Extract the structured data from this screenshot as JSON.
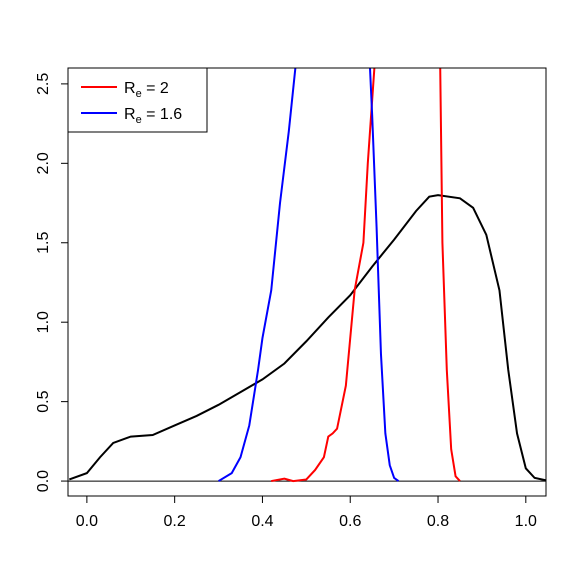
{
  "chart_data": {
    "type": "line",
    "xlim": [
      -0.043,
      1.046
    ],
    "ylim": [
      -0.094,
      2.6
    ],
    "xticks": [
      {
        "value": 0,
        "label": "0.0"
      },
      0.2,
      0.4,
      0.6,
      0.8,
      {
        "value": 1,
        "label": "1.0"
      }
    ],
    "yticks": [
      {
        "value": 0,
        "label": "0.0"
      },
      0.5,
      {
        "value": 1,
        "label": "1.0"
      },
      1.5,
      {
        "value": 2,
        "label": "2.0"
      },
      2.5
    ],
    "hline": 0,
    "legend": "top-left",
    "series": [
      {
        "color": "#000000",
        "x": [
          -0.04,
          0,
          0.03,
          0.06,
          0.1,
          0.15,
          0.2,
          0.25,
          0.3,
          0.35,
          0.4,
          0.45,
          0.5,
          0.55,
          0.6,
          0.65,
          0.7,
          0.75,
          0.78,
          0.8,
          0.85,
          0.88,
          0.91,
          0.94,
          0.96,
          0.98,
          1.0,
          1.02,
          1.045
        ],
        "values": [
          0.01,
          0.05,
          0.15,
          0.24,
          0.28,
          0.29,
          0.35,
          0.41,
          0.48,
          0.56,
          0.64,
          0.74,
          0.88,
          1.03,
          1.17,
          1.35,
          1.52,
          1.7,
          1.79,
          1.8,
          1.78,
          1.72,
          1.55,
          1.2,
          0.7,
          0.3,
          0.08,
          0.02,
          0.005
        ]
      },
      {
        "name": [
          "R",
          "e",
          " = 2"
        ],
        "color": "#ff0000",
        "x": [
          0.42,
          0.45,
          0.47,
          0.5,
          0.52,
          0.54,
          0.55,
          0.56,
          0.57,
          0.59,
          0.61,
          0.63,
          0.64,
          0.655,
          null,
          0.805,
          0.81,
          0.82,
          0.83,
          0.84,
          0.85
        ],
        "values": [
          0,
          0.015,
          0,
          0.01,
          0.07,
          0.15,
          0.28,
          0.3,
          0.33,
          0.6,
          1.2,
          1.5,
          2.0,
          2.6,
          null,
          2.6,
          1.5,
          0.7,
          0.2,
          0.03,
          0
        ]
      },
      {
        "name": [
          "R",
          "e",
          " = 1.6"
        ],
        "color": "#0000ff",
        "x": [
          0.3,
          0.33,
          0.35,
          0.37,
          0.39,
          0.4,
          0.42,
          0.44,
          0.46,
          0.475,
          null,
          0.645,
          0.65,
          0.66,
          0.67,
          0.68,
          0.69,
          0.7,
          0.71
        ],
        "values": [
          0,
          0.05,
          0.15,
          0.35,
          0.7,
          0.9,
          1.2,
          1.75,
          2.2,
          2.6,
          null,
          2.6,
          2.3,
          1.6,
          0.8,
          0.3,
          0.1,
          0.02,
          0
        ]
      }
    ]
  }
}
